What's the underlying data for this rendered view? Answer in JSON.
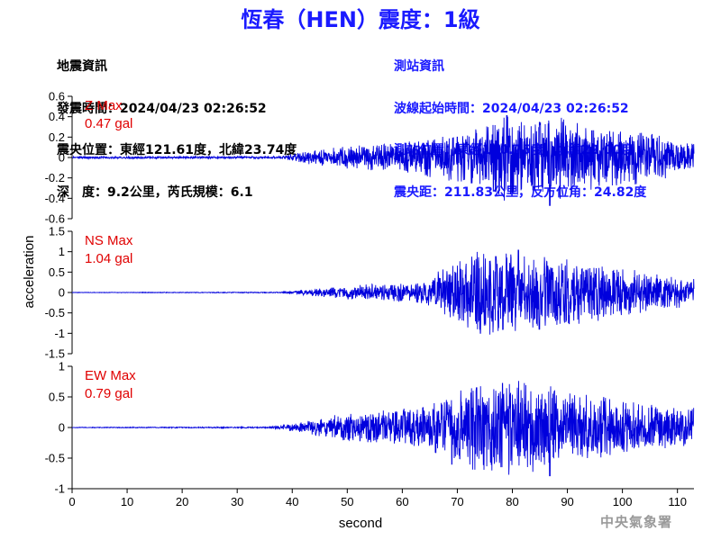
{
  "header": {
    "title": "恆春（HEN）震度：1級"
  },
  "earthquake_info": {
    "heading": "地震資訊",
    "time_line": "發震時間：2024/04/23 02:26:52",
    "epicenter_line": "震央位置：東經121.61度，北緯23.74度",
    "depth_line": "深　度：9.2公里，芮氏規模：6.1"
  },
  "station_info": {
    "heading": "測站資訊",
    "wave_start_line": "波線起始時間：2024/04/23 02:26:52",
    "station_location_line": "測站位置：東經120.75度，北緯22.00度",
    "distance_line": "震央距：211.83公里，反方位角：24.82度"
  },
  "credit": "中央氣象署",
  "colors": {
    "trace": "#0000dd",
    "max_label": "#e00000",
    "title": "#1a1aff"
  },
  "chart_data": {
    "type": "line",
    "xlabel": "second",
    "ylabel": "acceleration",
    "xlim": [
      0,
      113
    ],
    "x_ticks": [
      0,
      10,
      20,
      30,
      40,
      50,
      60,
      70,
      80,
      90,
      100,
      110
    ],
    "panels": [
      {
        "name": "Z",
        "max_label": "Z Max",
        "max_value": "0.47 gal",
        "ylim": [
          -0.6,
          0.6
        ],
        "y_ticks": [
          -0.6,
          -0.4,
          -0.2,
          0,
          0.2,
          0.4,
          0.6
        ],
        "y_tick_labels": [
          "-0.6",
          "-0.4",
          "-0.2",
          "0",
          "0.2",
          "0.4",
          "0.6"
        ],
        "envelope": [
          [
            0,
            0.01
          ],
          [
            38,
            0.01
          ],
          [
            42,
            0.05
          ],
          [
            50,
            0.1
          ],
          [
            60,
            0.13
          ],
          [
            68,
            0.2
          ],
          [
            75,
            0.28
          ],
          [
            79,
            0.4
          ],
          [
            83,
            0.3
          ],
          [
            87,
            0.4
          ],
          [
            92,
            0.3
          ],
          [
            100,
            0.26
          ],
          [
            108,
            0.18
          ],
          [
            112,
            0.12
          ]
        ],
        "peaks": [
          [
            79,
            0.41
          ],
          [
            86.8,
            -0.47
          ],
          [
            85,
            0.32
          ],
          [
            70,
            0.2
          ]
        ]
      },
      {
        "name": "NS",
        "max_label": "NS Max",
        "max_value": "1.04 gal",
        "ylim": [
          -1.5,
          1.5
        ],
        "y_ticks": [
          -1.5,
          -1,
          -0.5,
          0,
          0.5,
          1,
          1.5
        ],
        "y_tick_labels": [
          "-1.5",
          "-1",
          "-0.5",
          "0",
          "0.5",
          "1",
          "1.5"
        ],
        "envelope": [
          [
            0,
            0.005
          ],
          [
            38,
            0.01
          ],
          [
            42,
            0.06
          ],
          [
            50,
            0.15
          ],
          [
            58,
            0.2
          ],
          [
            64,
            0.25
          ],
          [
            68,
            0.6
          ],
          [
            72,
            0.85
          ],
          [
            76,
            0.9
          ],
          [
            80,
            0.9
          ],
          [
            84,
            0.8
          ],
          [
            90,
            0.75
          ],
          [
            96,
            0.6
          ],
          [
            104,
            0.45
          ],
          [
            112,
            0.3
          ]
        ],
        "peaks": [
          [
            74.2,
            -1.0
          ],
          [
            81.1,
            1.04
          ],
          [
            84.9,
            -0.9
          ],
          [
            77,
            0.88
          ]
        ]
      },
      {
        "name": "EW",
        "max_label": "EW Max",
        "max_value": "0.79 gal",
        "ylim": [
          -1,
          1
        ],
        "y_ticks": [
          -1,
          -0.5,
          0,
          0.5,
          1
        ],
        "y_tick_labels": [
          "-1",
          "-0.5",
          "0",
          "0.5",
          "1"
        ],
        "envelope": [
          [
            0,
            0.005
          ],
          [
            36,
            0.01
          ],
          [
            40,
            0.06
          ],
          [
            48,
            0.18
          ],
          [
            56,
            0.25
          ],
          [
            64,
            0.3
          ],
          [
            68,
            0.45
          ],
          [
            72,
            0.6
          ],
          [
            78,
            0.7
          ],
          [
            84,
            0.65
          ],
          [
            90,
            0.55
          ],
          [
            96,
            0.45
          ],
          [
            104,
            0.35
          ],
          [
            112,
            0.28
          ]
        ],
        "peaks": [
          [
            86.8,
            -0.79
          ],
          [
            73.5,
            0.65
          ],
          [
            78.2,
            0.72
          ],
          [
            69,
            -0.6
          ]
        ]
      }
    ]
  }
}
